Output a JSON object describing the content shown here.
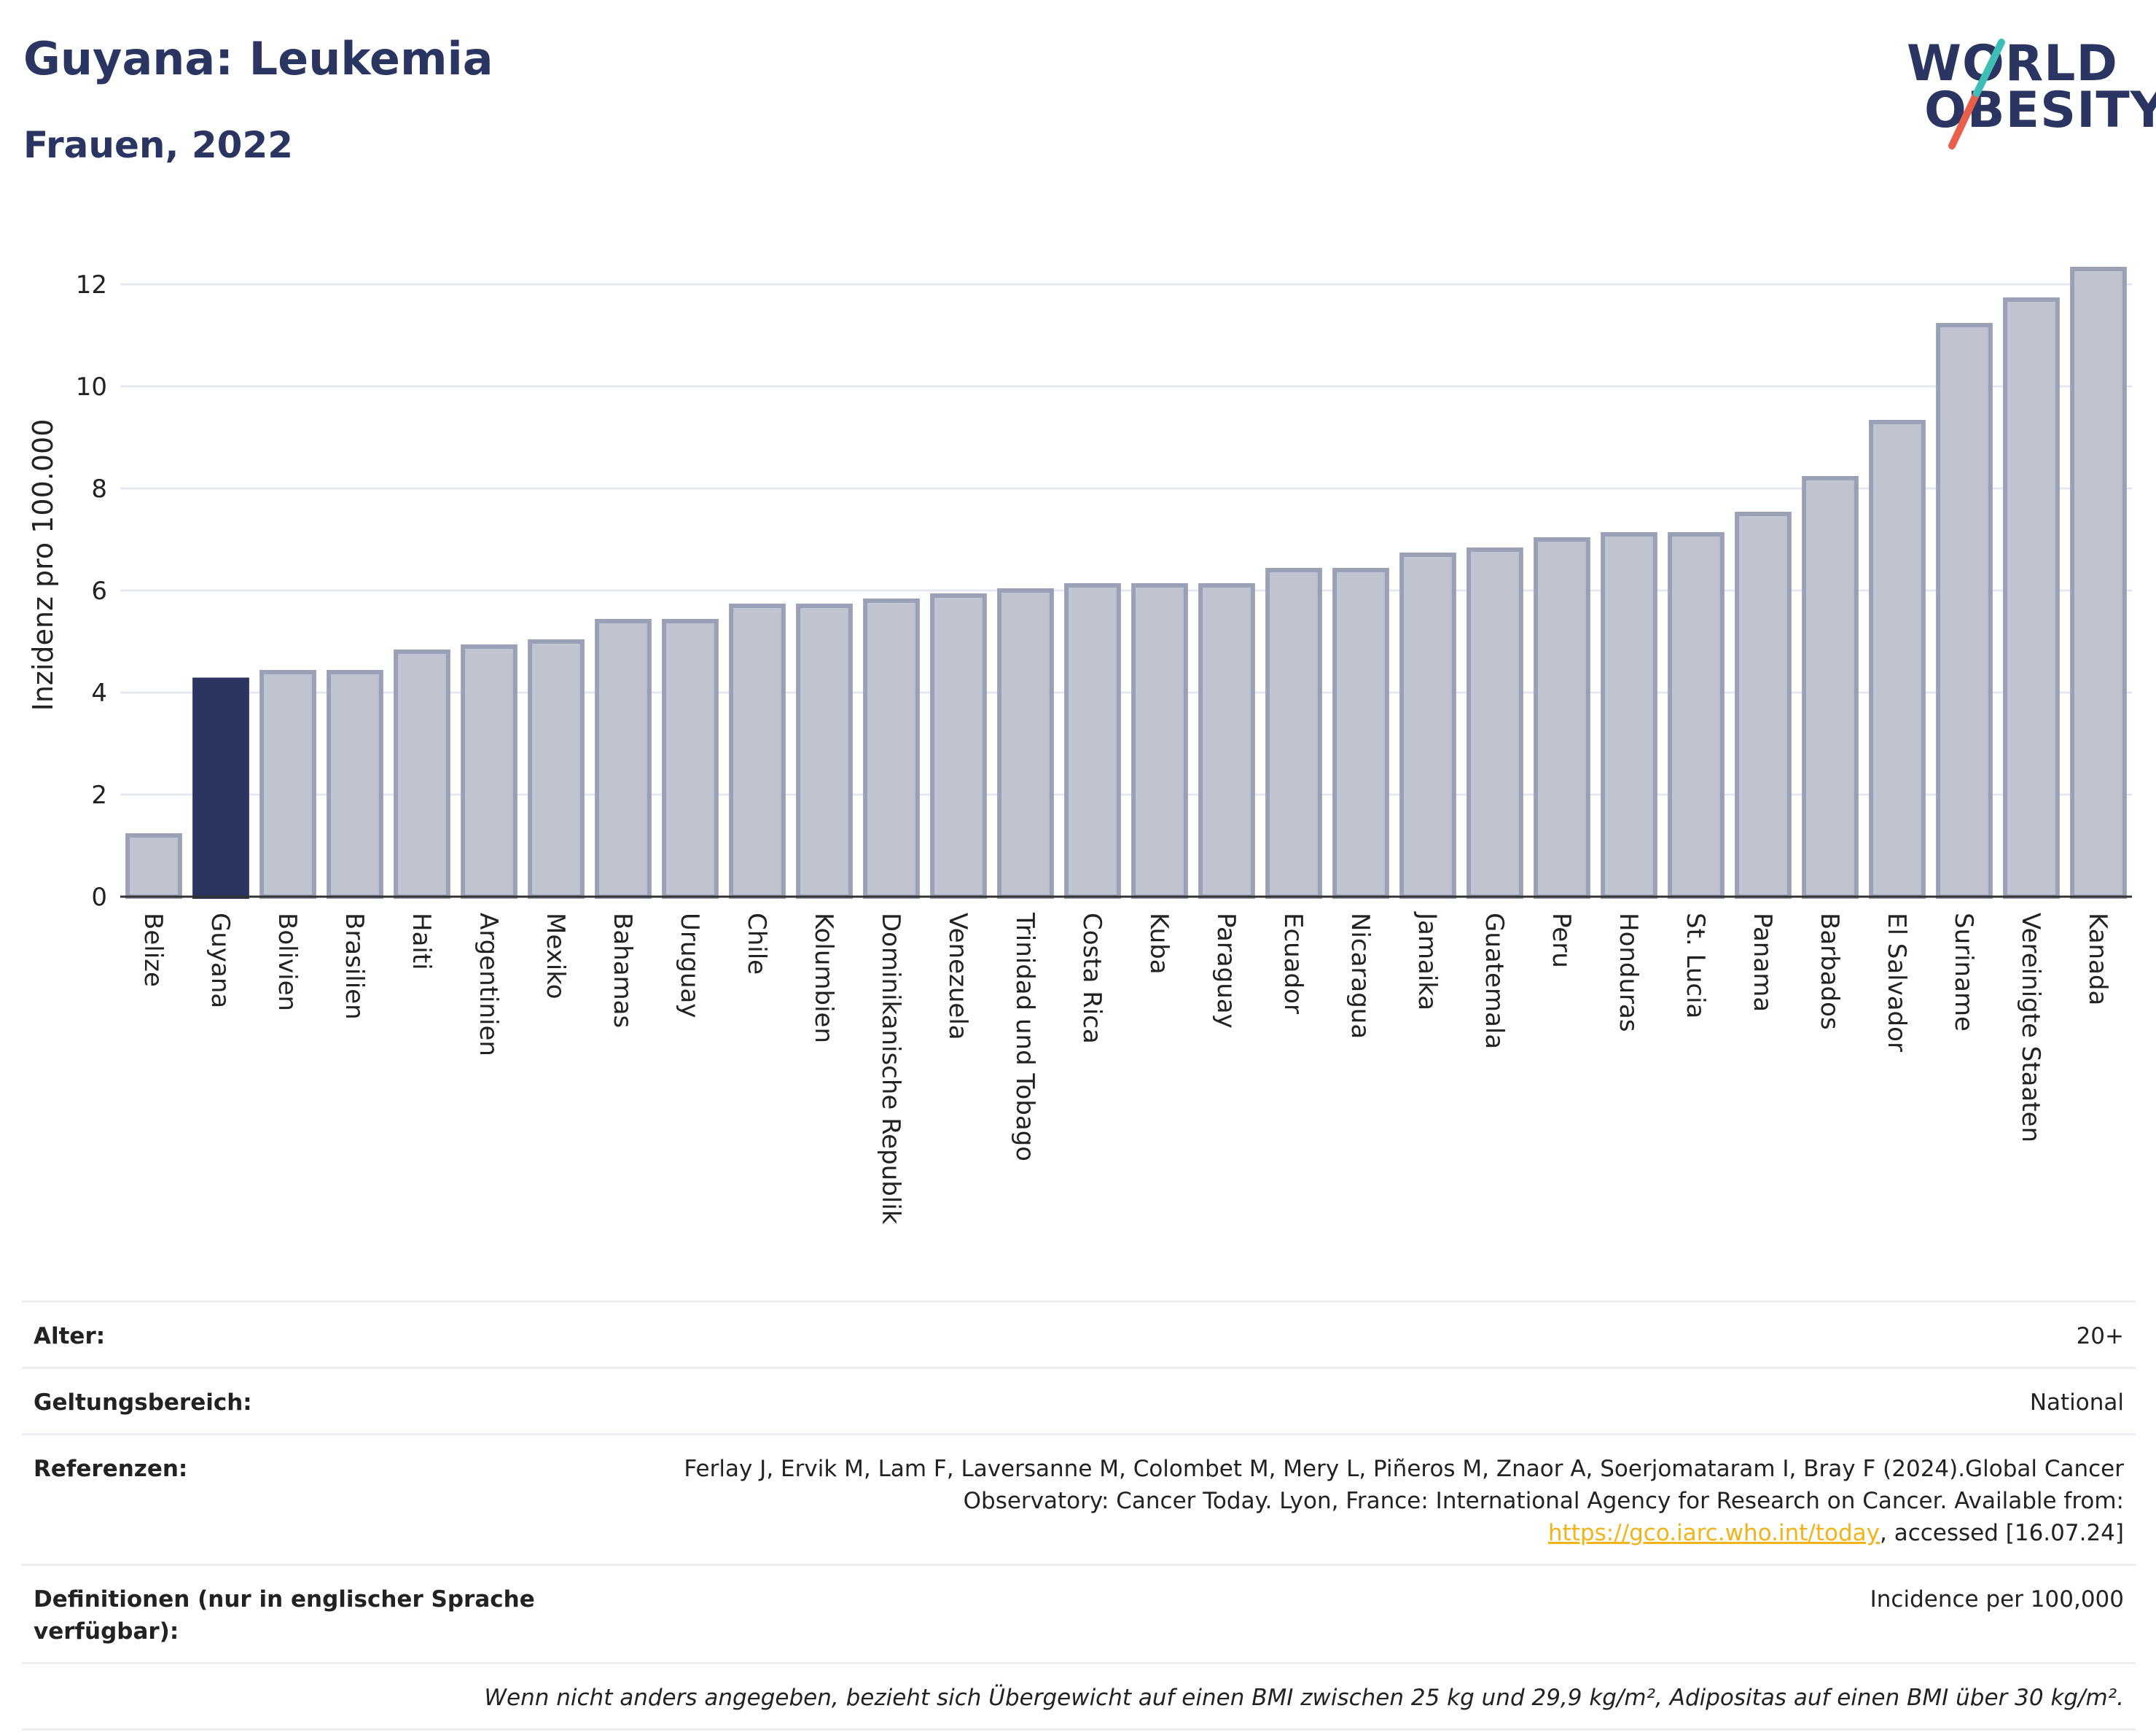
{
  "header": {
    "title": "Guyana: Leukemia",
    "subtitle": "Frauen, 2022"
  },
  "logo": {
    "line1": "WORLD",
    "line2": "OBESITY"
  },
  "chart_data": {
    "type": "bar",
    "ylabel": "Inzidenz pro 100.000",
    "ylim": [
      0,
      13
    ],
    "yticks": [
      0,
      2,
      4,
      6,
      8,
      10,
      12
    ],
    "grid": true,
    "highlight": "Guyana",
    "highlight_color": "#2b3561",
    "bar_color": "#c0c4d1",
    "bar_edge_color": "#9aa0b5",
    "categories": [
      "Belize",
      "Guyana",
      "Bolivien",
      "Brasilien",
      "Haiti",
      "Argentinien",
      "Mexiko",
      "Bahamas",
      "Uruguay",
      "Chile",
      "Kolumbien",
      "Dominikanische Republik",
      "Venezuela",
      "Trinidad und Tobago",
      "Costa Rica",
      "Kuba",
      "Paraguay",
      "Ecuador",
      "Nicaragua",
      "Jamaika",
      "Guatemala",
      "Peru",
      "Honduras",
      "St. Lucia",
      "Panama",
      "Barbados",
      "El Salvador",
      "Suriname",
      "Vereinigte Staaten",
      "Kanada"
    ],
    "values": [
      1.2,
      4.25,
      4.4,
      4.4,
      4.8,
      4.9,
      5.0,
      5.4,
      5.4,
      5.7,
      5.7,
      5.8,
      5.9,
      6.0,
      6.1,
      6.1,
      6.1,
      6.4,
      6.4,
      6.7,
      6.8,
      7.0,
      7.1,
      7.1,
      7.5,
      8.2,
      9.3,
      11.2,
      11.7,
      12.3
    ]
  },
  "meta": {
    "age_label": "Alter:",
    "age_value": "20+",
    "scope_label": "Geltungsbereich:",
    "scope_value": "National",
    "ref_label": "Referenzen:",
    "ref_text_1": "Ferlay J, Ervik M, Lam F, Laversanne M, Colombet M, Mery L, Piñeros M, Znaor A, Soerjomataram I, Bray F (2024).Global Cancer Observatory: Cancer Today. Lyon, France: International Agency for Research on Cancer. Available from: ",
    "ref_link": "https://gco.iarc.who.int/today",
    "ref_text_2": ", accessed [16.07.24]",
    "def_label": "Definitionen (nur in englischer Sprache verfügbar):",
    "def_value": "Incidence per 100,000",
    "note": "Wenn nicht anders angegeben, bezieht sich Übergewicht auf einen BMI zwischen 25 kg und 29,9 kg/m², Adipositas auf einen BMI über 30 kg/m²."
  }
}
